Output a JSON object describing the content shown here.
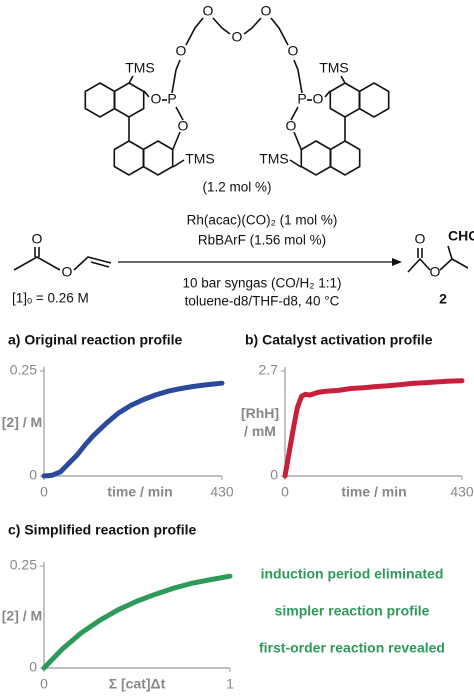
{
  "scheme": {
    "ligand_chain_atoms": [
      "O",
      "O",
      "O",
      "O",
      "O"
    ],
    "ligand_left_atoms": [
      "TMS",
      "O",
      "P",
      "O",
      "TMS"
    ],
    "ligand_right_atoms": [
      "TMS",
      "P",
      "O",
      "O",
      "TMS"
    ],
    "ligand_loading": "(1.2 mol %)",
    "conditions_above": [
      "Rh(acac)(CO)₂ (1 mol %)",
      "RbBArF (1.56 mol %)"
    ],
    "conditions_below": [
      "10 bar syngas (CO/H₂ 1:1)",
      "toluene-d8/THF-d8, 40 °C"
    ],
    "substrate_atoms": [
      "O",
      "O"
    ],
    "substrate_concentration": "[1]ₒ = 0.26 M",
    "product_atoms": [
      "O",
      "O"
    ],
    "product_group": "CHO",
    "product_label": "2"
  },
  "chart_data": [
    {
      "type": "line",
      "title": "a) Original reaction profile",
      "xlabel": "time / min",
      "ylabel": "[2] / M",
      "x": [
        0,
        20,
        40,
        60,
        80,
        100,
        120,
        150,
        180,
        210,
        240,
        270,
        300,
        330,
        360,
        390,
        430
      ],
      "values": [
        0,
        0.002,
        0.01,
        0.03,
        0.05,
        0.075,
        0.097,
        0.125,
        0.15,
        0.168,
        0.182,
        0.193,
        0.202,
        0.208,
        0.213,
        0.217,
        0.221
      ],
      "color": "#2a4a9c",
      "xlim": [
        0,
        430
      ],
      "xticks": [
        0,
        430
      ],
      "ylim": [
        0,
        0.25
      ],
      "yticks": [
        0,
        0.25
      ]
    },
    {
      "type": "line",
      "title": "b) Catalyst activation profile",
      "xlabel": "time / min",
      "ylabel": [
        "[RhH]",
        "/ mM"
      ],
      "x": [
        0,
        10,
        20,
        30,
        40,
        50,
        60,
        80,
        100,
        130,
        160,
        190,
        220,
        250,
        280,
        310,
        340,
        370,
        400,
        430
      ],
      "values": [
        0,
        0.6,
        1.2,
        1.75,
        2.05,
        2.1,
        2.08,
        2.15,
        2.18,
        2.2,
        2.25,
        2.27,
        2.3,
        2.32,
        2.35,
        2.38,
        2.4,
        2.42,
        2.44,
        2.45
      ],
      "color": "#c8203c",
      "xlim": [
        0,
        430
      ],
      "xticks": [
        0,
        430
      ],
      "ylim": [
        0,
        2.7
      ],
      "yticks": [
        0,
        2.7
      ]
    },
    {
      "type": "line",
      "title": "c) Simplified reaction profile",
      "xlabel": "Σ [cat]Δt",
      "xlabel_color": "#d0203a",
      "ylabel": "[2] / M",
      "x": [
        0,
        0.1,
        0.2,
        0.3,
        0.4,
        0.5,
        0.6,
        0.7,
        0.8,
        0.9,
        1
      ],
      "values": [
        0,
        0.047,
        0.086,
        0.117,
        0.143,
        0.164,
        0.181,
        0.196,
        0.208,
        0.217,
        0.225
      ],
      "color": "#2e9a5a",
      "xlim": [
        0,
        1
      ],
      "xticks": [
        0,
        1
      ],
      "ylim": [
        0,
        0.25
      ],
      "yticks": [
        0,
        0.25
      ],
      "annotations": [
        "induction period eliminated",
        "simpler reaction profile",
        "first-order reaction revealed"
      ],
      "annotation_color": "#2e9a5a"
    }
  ]
}
